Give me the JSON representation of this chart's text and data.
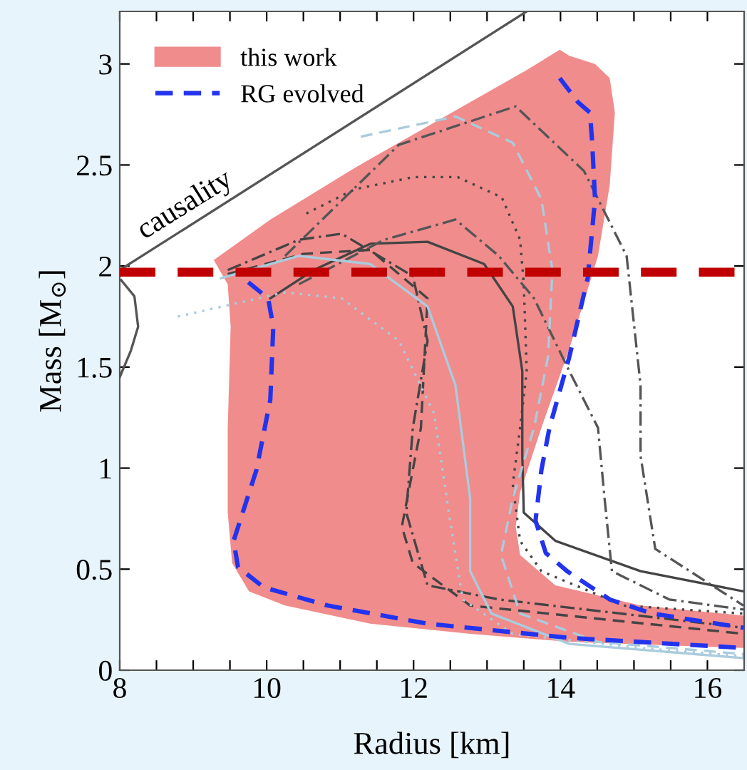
{
  "chart_data": {
    "type": "line",
    "xlabel": "Radius [km]",
    "ylabel": "Mass [M$_{⊙}$]",
    "xlim": [
      8,
      16.5
    ],
    "ylim": [
      0,
      3.26
    ],
    "xticks": [
      8,
      {
        "value": 8.5,
        "label": null
      },
      {
        "value": 9,
        "label": null
      },
      {
        "value": 9.5,
        "label": null
      },
      10,
      {
        "value": 10.5,
        "label": null
      },
      {
        "value": 11,
        "label": null
      },
      {
        "value": 11.5,
        "label": null
      },
      12,
      {
        "value": 12.5,
        "label": null
      },
      {
        "value": 13,
        "label": null
      },
      {
        "value": 13.5,
        "label": null
      },
      14,
      {
        "value": 14.5,
        "label": null
      },
      {
        "value": 15,
        "label": null
      },
      {
        "value": 15.5,
        "label": null
      },
      16
    ],
    "yticks": [
      0,
      0.5,
      1,
      1.5,
      2,
      2.5,
      3
    ],
    "legend": "top left",
    "grid": false,
    "series": [
      {
        "name": "this work",
        "type": "area",
        "color": "#f08c8c",
        "x": [
          9.28,
          9.47,
          9.51,
          9.47,
          9.47,
          9.53,
          9.76,
          10.25,
          11.41,
          12.77,
          14.12,
          16.49,
          16.49,
          15.09,
          13.93,
          13.45,
          13.39,
          13.45,
          13.74,
          14.12,
          14.51,
          14.67,
          14.74,
          14.67,
          14.47,
          14.12,
          13.99,
          13.54,
          12.57,
          11.22,
          10.05,
          9.28
        ],
        "values": [
          2.03,
          1.91,
          1.7,
          1.2,
          0.78,
          0.53,
          0.39,
          0.32,
          0.23,
          0.18,
          0.14,
          0.11,
          0.27,
          0.32,
          0.42,
          0.57,
          0.71,
          0.88,
          1.2,
          1.59,
          2.05,
          2.4,
          2.76,
          2.93,
          3.0,
          3.04,
          3.07,
          2.97,
          2.77,
          2.49,
          2.23,
          2.03
        ]
      },
      {
        "color": "#555555",
        "line_style": "solid",
        "x": [
          8,
          13.54
        ],
        "values": [
          1.98,
          3.26
        ]
      },
      {
        "color": "#555555",
        "line_style": "solid",
        "x": [
          8.02,
          8.2,
          8.25,
          8.15,
          8.0
        ],
        "values": [
          1.93,
          1.85,
          1.7,
          1.58,
          1.45
        ]
      },
      {
        "color": "#444444",
        "line_style": "solid",
        "x": [
          10.05,
          10.64,
          11.41,
          12.19,
          12.96,
          13.35,
          13.48,
          13.48,
          13.5,
          13.93,
          15.09,
          16.49
        ],
        "values": [
          1.84,
          1.98,
          2.11,
          2.12,
          2.01,
          1.8,
          1.48,
          1.06,
          0.78,
          0.64,
          0.49,
          0.39
        ]
      },
      {
        "color": "#444444",
        "line_style": "dotted",
        "x": [
          10.54,
          11.2,
          12.0,
          12.6,
          13.2,
          13.45,
          13.5,
          13.54,
          13.45,
          13.35,
          13.45,
          13.74,
          14.86,
          16.49
        ],
        "values": [
          2.26,
          2.38,
          2.44,
          2.44,
          2.34,
          2.13,
          1.91,
          1.48,
          1.2,
          0.92,
          0.64,
          0.49,
          0.32,
          0.28
        ]
      },
      {
        "color": "#555555",
        "line_style": "dashdot",
        "x": [
          10.25,
          11.8,
          13.39,
          14.32,
          14.9,
          15.09,
          15.09,
          15.29,
          16.49
        ],
        "values": [
          2.05,
          2.6,
          2.79,
          2.47,
          2.05,
          1.41,
          1.06,
          0.6,
          0.32
        ]
      },
      {
        "color": "#555555",
        "line_style": "dashdot",
        "x": [
          10.44,
          11.6,
          12.57,
          13.16,
          13.64,
          14.12,
          14.51,
          14.6,
          14.7,
          15.48,
          16.49
        ],
        "values": [
          1.91,
          2.13,
          2.23,
          2.05,
          1.84,
          1.48,
          1.2,
          0.85,
          0.49,
          0.35,
          0.3
        ]
      },
      {
        "color": "#444444",
        "line_style": "dashdot",
        "x": [
          9.47,
          10.44,
          11.02,
          11.99,
          12.19,
          11.99,
          11.9,
          12.19,
          13.16,
          16.49
        ],
        "values": [
          1.98,
          2.13,
          2.16,
          1.95,
          1.63,
          1.2,
          0.78,
          0.42,
          0.35,
          0.21
        ]
      },
      {
        "color": "#444444",
        "line_style": "dashed",
        "x": [
          9.47,
          10.5,
          11.41,
          12.19,
          12.1,
          11.84,
          11.99,
          12.77,
          16.49
        ],
        "values": [
          1.96,
          2.06,
          2.08,
          1.84,
          1.2,
          0.71,
          0.53,
          0.32,
          0.18
        ]
      },
      {
        "color": "#aaccdd",
        "line_style": "solid",
        "x": [
          9.38,
          10.44,
          11.41,
          12.19,
          12.57,
          12.77,
          12.77,
          13.06,
          14.12,
          16.49
        ],
        "values": [
          1.94,
          2.05,
          2.01,
          1.8,
          1.41,
          0.85,
          0.49,
          0.28,
          0.13,
          0.06
        ]
      },
      {
        "color": "#aaccdd",
        "line_style": "dashed",
        "x": [
          11.28,
          12.57,
          13.35,
          13.74,
          13.89,
          13.83,
          13.64,
          13.35,
          13.19,
          13.45,
          14.51,
          16.49
        ],
        "values": [
          2.64,
          2.74,
          2.61,
          2.33,
          1.98,
          1.55,
          1.2,
          0.85,
          0.57,
          0.28,
          0.14,
          0.08
        ]
      },
      {
        "color": "#aaccdd",
        "line_style": "dotted",
        "x": [
          8.79,
          10.25,
          11.02,
          11.8,
          12.28,
          12.48,
          12.67,
          13.35,
          15.09,
          16.49
        ],
        "values": [
          1.75,
          1.87,
          1.84,
          1.63,
          1.27,
          0.78,
          0.35,
          0.18,
          0.11,
          0.07
        ]
      },
      {
        "name": "RG evolved",
        "color": "#2233ee",
        "line_style": "dashed",
        "x": [
          9.75,
          10.02,
          10.09,
          10.05,
          9.86,
          9.55,
          9.61,
          9.96,
          10.83,
          12.19,
          14.12,
          16.49,
          null,
          13.99,
          14.24,
          14.4,
          14.43,
          14.47,
          14.37,
          14.12,
          13.85,
          13.74,
          13.66,
          13.8,
          14.09,
          14.67,
          15.25,
          16.49
        ],
        "values": [
          1.92,
          1.84,
          1.7,
          1.34,
          0.99,
          0.64,
          0.51,
          0.41,
          0.32,
          0.23,
          0.16,
          0.11,
          null,
          2.93,
          2.81,
          2.76,
          2.62,
          2.33,
          1.94,
          1.55,
          1.2,
          0.99,
          0.74,
          0.58,
          0.49,
          0.35,
          0.28,
          0.21
        ]
      }
    ],
    "ref_lines": [
      {
        "axis": "y",
        "value": 1.97,
        "color": "#c00000",
        "line_style": "dashed"
      }
    ],
    "annotations": [
      "causality"
    ]
  }
}
